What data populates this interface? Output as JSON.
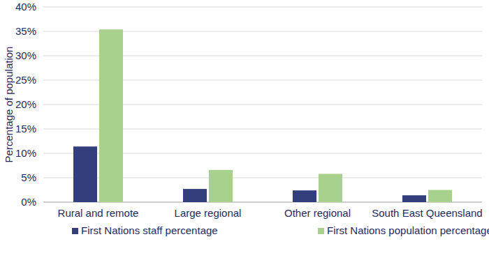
{
  "chart_data": {
    "type": "bar",
    "y_label": "Percentage of population",
    "categories": [
      "Rural and remote",
      "Large regional",
      "Other regional",
      "South East Queensland"
    ],
    "series": [
      {
        "name": "First Nations staff percentage",
        "color": "#323f7c",
        "values": [
          11.4,
          2.7,
          2.4,
          1.4
        ]
      },
      {
        "name": "First Nations population percentage",
        "color": "#a9d18e",
        "values": [
          35.4,
          6.6,
          5.8,
          2.5
        ]
      }
    ],
    "ylim": [
      0,
      40
    ],
    "yticks": [
      {
        "value": 0,
        "label": "0%"
      },
      {
        "value": 5,
        "label": "5%"
      },
      {
        "value": 10,
        "label": "10%"
      },
      {
        "value": 15,
        "label": "15%"
      },
      {
        "value": 20,
        "label": "20%"
      },
      {
        "value": 25,
        "label": "25%"
      },
      {
        "value": 30,
        "label": "30%"
      },
      {
        "value": 35,
        "label": "35%"
      },
      {
        "value": 40,
        "label": "40%"
      }
    ],
    "grid": true,
    "legend": "bottom"
  }
}
